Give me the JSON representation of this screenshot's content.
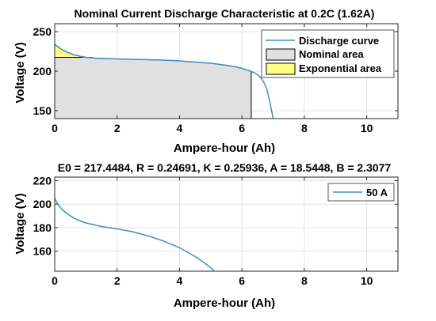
{
  "chart_data": [
    {
      "type": "area",
      "title": "Nominal Current Discharge Characteristic at 0.2C (1.62A)",
      "xlabel": "Ampere-hour (Ah)",
      "ylabel": "Voltage (V)",
      "xlim": [
        0,
        11
      ],
      "ylim": [
        140,
        260
      ],
      "xticks": [
        "0",
        "2",
        "4",
        "6",
        "8",
        "10"
      ],
      "yticks": [
        "150",
        "200",
        "250"
      ],
      "grid": true,
      "legend_position": "top-right",
      "colors": {
        "curve": "#3a8fc7",
        "nominal": "#e0e0e0",
        "exponential": "#ffff80"
      },
      "series": [
        {
          "name": "Discharge curve",
          "x": [
            0,
            0.1,
            0.2,
            0.4,
            0.6,
            0.8,
            1.0,
            1.3,
            1.6,
            2,
            2.5,
            3,
            3.5,
            4,
            4.5,
            5,
            5.5,
            5.8,
            6.0,
            6.2,
            6.3,
            6.4,
            6.5,
            6.6,
            6.7,
            6.8,
            6.9,
            7.0
          ],
          "y": [
            234,
            231,
            228,
            224,
            221,
            219,
            217.5,
            216.5,
            216,
            215.5,
            215,
            214.5,
            214,
            213,
            211.5,
            210,
            207.5,
            205.5,
            203.5,
            201,
            199.5,
            198,
            195.5,
            192,
            186,
            177,
            160,
            140
          ]
        },
        {
          "name": "Nominal area",
          "x": [
            0,
            0.1,
            0.2,
            0.4,
            0.6,
            0.8,
            1.0,
            1.3,
            1.6,
            2,
            2.5,
            3,
            3.5,
            4,
            4.5,
            5,
            5.5,
            5.8,
            6.0,
            6.2,
            6.3
          ],
          "y": [
            217.5,
            217.5,
            217.5,
            217.5,
            217.5,
            217.5,
            217.5,
            216.5,
            216,
            215.5,
            215,
            214.5,
            214,
            213,
            211.5,
            210,
            207.5,
            205.5,
            203.5,
            201,
            199.5
          ]
        },
        {
          "name": "Exponential area",
          "x": [
            0,
            0.1,
            0.2,
            0.4,
            0.6,
            0.8,
            1.0,
            1.2
          ],
          "y": [
            234,
            231,
            228,
            224,
            221,
            219,
            217.5,
            217.5
          ]
        }
      ]
    },
    {
      "type": "line",
      "title": "E0 = 217.4484, R = 0.24691, K = 0.25936, A = 18.5448, B = 2.3077",
      "xlabel": "Ampere-hour (Ah)",
      "ylabel": "Voltage (V)",
      "xlim": [
        0,
        11
      ],
      "ylim": [
        143,
        223
      ],
      "xticks": [
        "0",
        "2",
        "4",
        "6",
        "8",
        "10"
      ],
      "yticks": [
        "160",
        "180",
        "200",
        "220"
      ],
      "grid": true,
      "legend_position": "top-right",
      "colors": {
        "curve": "#3a8fc7"
      },
      "series": [
        {
          "name": "50 A",
          "x": [
            0,
            0.1,
            0.2,
            0.3,
            0.5,
            0.7,
            1,
            1.5,
            2,
            2.5,
            3,
            3.5,
            4,
            4.5,
            4.8,
            5.0,
            5.1
          ],
          "y": [
            205,
            200,
            196.5,
            194,
            190,
            187,
            184,
            181,
            179,
            176.5,
            173,
            168.5,
            163,
            155.5,
            150,
            146,
            143.5
          ]
        }
      ]
    }
  ]
}
